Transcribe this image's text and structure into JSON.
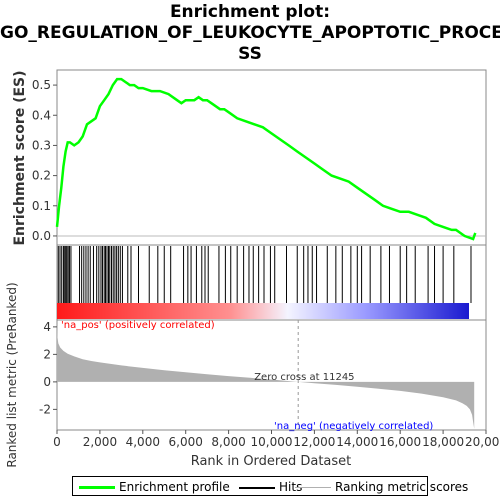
{
  "title_line1": "Enrichment plot:",
  "title_line2": "GO_REGULATION_OF_LEUKOCYTE_APOPTOTIC_PROCE",
  "title_line3": "SS",
  "legend": {
    "enrichment": "Enrichment profile",
    "hits": "Hits",
    "ranking": "Ranking metric scores"
  },
  "colors": {
    "enrichment_line": "#00ff00",
    "hits": "#000000",
    "ranking_fill": "#b0b0b0",
    "pos_label": "#ff0000",
    "neg_label": "#0000ff"
  },
  "chart_data": [
    {
      "type": "line",
      "panel": "enrichment",
      "ylabel": "Enrichment score (ES)",
      "ylim": [
        -0.03,
        0.55
      ],
      "yticks": [
        "0.0",
        "0.1",
        "0.2",
        "0.3",
        "0.4",
        "0.5"
      ],
      "xlim": [
        0,
        20000
      ],
      "series": [
        {
          "name": "Enrichment profile",
          "x": [
            0,
            100,
            200,
            300,
            400,
            500,
            600,
            800,
            1000,
            1100,
            1200,
            1400,
            1600,
            1800,
            2000,
            2200,
            2400,
            2600,
            2800,
            3000,
            3200,
            3400,
            3600,
            3800,
            4000,
            4400,
            4800,
            5200,
            5600,
            5800,
            6000,
            6200,
            6400,
            6600,
            6800,
            7000,
            7200,
            7400,
            7600,
            7800,
            8000,
            8400,
            8800,
            9200,
            9600,
            10000,
            10400,
            10800,
            11200,
            11600,
            12000,
            12400,
            12800,
            13200,
            13600,
            14000,
            14400,
            14800,
            15200,
            15600,
            16000,
            16400,
            16800,
            17200,
            17600,
            18000,
            18400,
            18600,
            19000,
            19400,
            19500
          ],
          "y": [
            0.03,
            0.1,
            0.16,
            0.23,
            0.28,
            0.31,
            0.31,
            0.3,
            0.31,
            0.32,
            0.33,
            0.37,
            0.38,
            0.39,
            0.43,
            0.45,
            0.47,
            0.5,
            0.52,
            0.52,
            0.51,
            0.5,
            0.5,
            0.49,
            0.49,
            0.48,
            0.48,
            0.47,
            0.45,
            0.44,
            0.45,
            0.45,
            0.45,
            0.46,
            0.45,
            0.45,
            0.44,
            0.43,
            0.42,
            0.42,
            0.41,
            0.39,
            0.38,
            0.37,
            0.36,
            0.34,
            0.32,
            0.3,
            0.28,
            0.26,
            0.24,
            0.22,
            0.2,
            0.19,
            0.18,
            0.16,
            0.14,
            0.12,
            0.1,
            0.09,
            0.08,
            0.08,
            0.07,
            0.06,
            0.04,
            0.03,
            0.02,
            0.02,
            0.0,
            -0.01,
            0.01
          ]
        }
      ]
    },
    {
      "type": "scatter",
      "panel": "hits",
      "name": "Hits",
      "x": [
        60,
        140,
        220,
        300,
        360,
        410,
        460,
        520,
        580,
        650,
        1050,
        1150,
        1250,
        1350,
        1450,
        1550,
        1700,
        1850,
        1950,
        2050,
        2120,
        2200,
        2260,
        2330,
        2400,
        2460,
        2540,
        2620,
        2700,
        2780,
        2860,
        2950,
        3050,
        3300,
        3450,
        3800,
        4300,
        4700,
        5000,
        5300,
        5900,
        6100,
        6250,
        6500,
        6750,
        6900,
        7050,
        7550,
        7850,
        8100,
        8400,
        8700,
        8950,
        9150,
        9400,
        9650,
        9950,
        10150,
        10700,
        11200,
        11500,
        11700,
        11900,
        12100,
        12600,
        13000,
        13300,
        13700,
        14000,
        14200,
        14600,
        15100,
        15500,
        16000,
        16300,
        16700,
        17300,
        17600,
        18000,
        18500,
        19300
      ]
    },
    {
      "type": "area",
      "panel": "ranked list",
      "ylabel": "Ranked list metric (PreRanked)",
      "xlabel": "Rank in Ordered Dataset",
      "ylim": [
        -3.5,
        4.5
      ],
      "yticks": [
        "-2",
        "0",
        "2",
        "4"
      ],
      "xticks": [
        "0",
        "2,000",
        "4,000",
        "6,000",
        "8,000",
        "10,000",
        "12,000",
        "14,000",
        "16,000",
        "18,000",
        "20,000"
      ],
      "zero_cross_label": "Zero cross at 11245",
      "zero_cross": 11245,
      "pos_label": "'na_pos' (positively correlated)",
      "neg_label": "'na_neg' (negatively correlated)",
      "series": [
        {
          "name": "Ranking metric scores",
          "x": [
            0,
            20,
            60,
            150,
            300,
            500,
            800,
            1200,
            1600,
            2000,
            3000,
            4000,
            5000,
            6000,
            7000,
            8000,
            9000,
            10000,
            11000,
            11245,
            12000,
            13000,
            14000,
            15000,
            16000,
            17000,
            18000,
            18600,
            18900,
            19100,
            19250,
            19350,
            19400,
            19450
          ],
          "y": [
            4.3,
            3.3,
            2.8,
            2.5,
            2.25,
            2.05,
            1.85,
            1.65,
            1.52,
            1.42,
            1.2,
            1.02,
            0.85,
            0.7,
            0.55,
            0.42,
            0.3,
            0.17,
            0.03,
            0.0,
            -0.1,
            -0.22,
            -0.36,
            -0.5,
            -0.66,
            -0.85,
            -1.12,
            -1.35,
            -1.55,
            -1.75,
            -2.0,
            -2.4,
            -2.9,
            -3.4
          ]
        }
      ]
    }
  ]
}
